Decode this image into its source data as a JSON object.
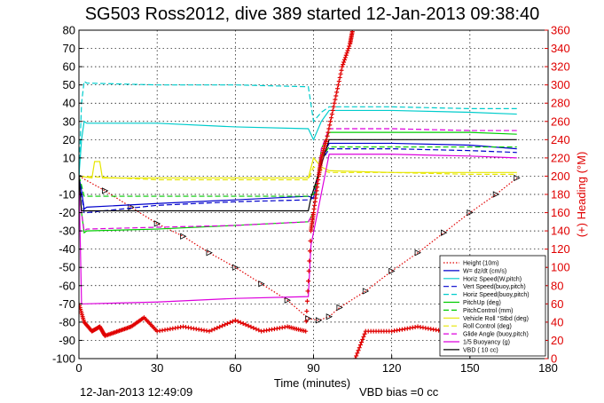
{
  "chart_data": {
    "type": "line",
    "title": "SG503 Ross2012, dive 389 started 12-Jan-2013 09:38:40",
    "xlabel": "Time (minutes)",
    "ylabel": "",
    "y2label": "(+) Heading (°M)",
    "xlim": [
      0,
      180
    ],
    "ylim": [
      -100,
      80
    ],
    "y2lim": [
      0,
      360
    ],
    "xticks": [
      0,
      30,
      60,
      90,
      120,
      150,
      180
    ],
    "yticks": [
      -100,
      -90,
      -80,
      -70,
      -60,
      -50,
      -40,
      -30,
      -20,
      -10,
      0,
      10,
      20,
      30,
      40,
      50,
      60,
      70,
      80
    ],
    "y2ticks": [
      0,
      20,
      40,
      60,
      80,
      100,
      120,
      140,
      160,
      180,
      200,
      220,
      240,
      260,
      280,
      300,
      320,
      340,
      360
    ],
    "grid": true,
    "legend_position": "lower-right",
    "footer_left": "12-Jan-2013 12:49:09",
    "footer_right": "VBD bias =0 cc",
    "series": [
      {
        "name": "Height (10m)",
        "color": "#e00000",
        "style": "dotted-with-markers",
        "x": [
          0,
          10,
          20,
          30,
          40,
          50,
          60,
          70,
          80,
          88,
          92,
          96,
          100,
          110,
          120,
          130,
          140,
          150,
          160,
          168
        ],
        "y": [
          0,
          -8,
          -17,
          -26,
          -33,
          -42,
          -50,
          -59,
          -68,
          -78,
          -79,
          -77,
          -72,
          -63,
          -52,
          -42,
          -31,
          -20,
          -10,
          -1
        ]
      },
      {
        "name": "W= dz/dt (cm/s)",
        "color": "#0000cc",
        "style": "solid",
        "x": [
          0,
          1,
          2,
          3,
          30,
          60,
          88,
          90,
          93,
          96,
          120,
          150,
          168
        ],
        "y": [
          0,
          -8,
          -18,
          -17,
          -15,
          -13,
          -11,
          -12,
          10,
          18,
          18,
          17,
          15
        ]
      },
      {
        "name": "Horiz Speed(W,pitch)",
        "color": "#00cccc",
        "style": "solid",
        "x": [
          0,
          1,
          2,
          3,
          30,
          60,
          88,
          90,
          93,
          96,
          120,
          150,
          168
        ],
        "y": [
          0,
          20,
          30,
          29,
          29,
          27,
          26,
          20,
          30,
          36,
          36,
          35,
          34
        ]
      },
      {
        "name": "Vert Speed(buoy,pitch)",
        "color": "#0000cc",
        "style": "dashed",
        "x": [
          0,
          1,
          2,
          3,
          30,
          60,
          88,
          90,
          93,
          96,
          120,
          150,
          168
        ],
        "y": [
          0,
          -10,
          -20,
          -20,
          -16,
          -14,
          -13,
          -12,
          8,
          15,
          15,
          14,
          13
        ]
      },
      {
        "name": "Horiz Speed(buoy,pitch)",
        "color": "#00cccc",
        "style": "dashed",
        "x": [
          0,
          1,
          2,
          3,
          30,
          60,
          88,
          90,
          93,
          96,
          120,
          150,
          168
        ],
        "y": [
          0,
          40,
          52,
          51,
          50,
          50,
          49,
          30,
          35,
          38,
          38,
          37,
          37
        ]
      },
      {
        "name": "PitchUp (deg)",
        "color": "#00cc00",
        "style": "solid",
        "x": [
          0,
          1,
          2,
          3,
          30,
          60,
          88,
          90,
          93,
          96,
          120,
          150,
          168
        ],
        "y": [
          0,
          -20,
          -31,
          -30,
          -29,
          -27,
          -25,
          -20,
          15,
          24,
          24,
          24,
          23
        ]
      },
      {
        "name": "PitchControl (mm)",
        "color": "#00cc00",
        "style": "dashed",
        "x": [
          0,
          1,
          2,
          3,
          30,
          60,
          88,
          90,
          93,
          96,
          120,
          150,
          168
        ],
        "y": [
          0,
          -5,
          -11,
          -11,
          -11,
          -11,
          -11,
          -10,
          10,
          16,
          16,
          16,
          16
        ]
      },
      {
        "name": "Vehicle Roll °Stbd (deg)",
        "color": "#e6e600",
        "style": "solid",
        "x": [
          0,
          5,
          6,
          8,
          9,
          30,
          60,
          88,
          90,
          93,
          96,
          120,
          150,
          168
        ],
        "y": [
          0,
          -1,
          8,
          8,
          -1,
          -1,
          -1,
          -1,
          10,
          5,
          3,
          2,
          2,
          2
        ]
      },
      {
        "name": "Roll Control (deg)",
        "color": "#e6e600",
        "style": "dashed",
        "x": [
          0,
          30,
          60,
          88,
          90,
          96,
          120,
          150,
          168
        ],
        "y": [
          0,
          -2,
          -2,
          -2,
          5,
          2,
          2,
          1,
          1
        ]
      },
      {
        "name": "Glide Angle (buoy,pitch)",
        "color": "#dd00dd",
        "style": "dashed",
        "x": [
          0,
          1,
          2,
          3,
          30,
          60,
          88,
          90,
          93,
          96,
          120,
          150,
          168
        ],
        "y": [
          0,
          -20,
          -30,
          -29,
          -28,
          -27,
          -25,
          -20,
          15,
          26,
          26,
          25,
          25
        ]
      },
      {
        "name": "1/5 Buoyancy (g)",
        "color": "#dd00dd",
        "style": "solid",
        "x": [
          0,
          1,
          2,
          30,
          60,
          88,
          89,
          96,
          120,
          150,
          168
        ],
        "y": [
          0,
          -70,
          -70,
          -69,
          -67,
          -66,
          -38,
          12,
          12,
          11,
          10
        ]
      },
      {
        "name": "VBD ( 10 cc)",
        "color": "#000000",
        "style": "solid",
        "x": [
          0,
          1,
          2,
          88,
          89,
          96,
          168
        ],
        "y": [
          0,
          -19,
          -19,
          -19,
          -12,
          20,
          20
        ]
      },
      {
        "name": "Heading",
        "color": "#e00000",
        "style": "plus-markers",
        "axis": "right",
        "x": [
          0,
          2,
          5,
          8,
          10,
          15,
          20,
          25,
          30,
          40,
          50,
          60,
          70,
          80,
          87,
          89,
          90,
          92,
          93,
          95,
          98,
          101,
          104,
          105,
          106,
          110,
          120,
          130,
          140
        ],
        "y": [
          60,
          40,
          30,
          35,
          25,
          30,
          35,
          45,
          30,
          35,
          30,
          42,
          30,
          35,
          30,
          140,
          160,
          200,
          220,
          240,
          280,
          320,
          345,
          360,
          0,
          30,
          30,
          35,
          30
        ]
      }
    ]
  }
}
